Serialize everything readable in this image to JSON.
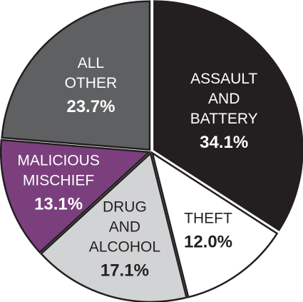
{
  "chart_data": {
    "type": "pie",
    "slices": [
      {
        "label_lines": [
          "ASSAULT",
          "AND",
          "BATTERY"
        ],
        "percent_label": "34.1%",
        "value": 34.1,
        "color": "#231f20",
        "text_color": "#ffffff"
      },
      {
        "label_lines": [
          "THEFT"
        ],
        "percent_label": "12.0%",
        "value": 12.0,
        "color": "#ffffff",
        "text_color": "#231f20"
      },
      {
        "label_lines": [
          "DRUG",
          "AND",
          "ALCOHOL"
        ],
        "percent_label": "17.1%",
        "value": 17.1,
        "color": "#d1d3d4",
        "text_color": "#231f20"
      },
      {
        "label_lines": [
          "MALICIOUS",
          "MISCHIEF"
        ],
        "percent_label": "13.1%",
        "value": 13.1,
        "color": "#7b3f7e",
        "text_color": "#ffffff"
      },
      {
        "label_lines": [
          "ALL",
          "OTHER"
        ],
        "percent_label": "23.7%",
        "value": 23.7,
        "color": "#5f6062",
        "text_color": "#ffffff"
      }
    ],
    "start_angle_deg": 0,
    "direction": "clockwise"
  }
}
